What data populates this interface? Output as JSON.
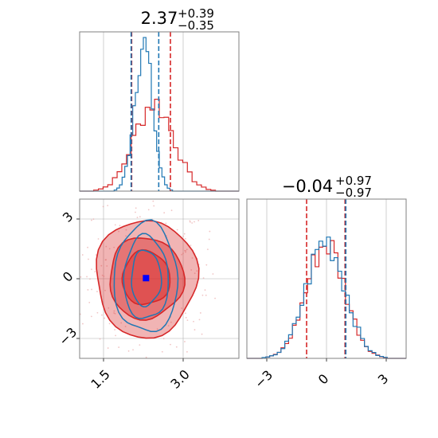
{
  "chart_data": {
    "type": "corner",
    "colors": {
      "red": "#d62728",
      "blue": "#1f77b4",
      "marker": "#0000ff",
      "grid": "#b0b0b0",
      "frame": "#808080",
      "tick": "#404040"
    },
    "titles": [
      {
        "value": "2.37",
        "sup": "+0.39",
        "sub": "−0.35"
      },
      {
        "value": "−0.04",
        "sup": "+0.97",
        "sub": "−0.97"
      }
    ],
    "params": [
      {
        "range": [
          1.05,
          4.05
        ],
        "ticks": [
          1.5,
          3.0
        ],
        "tick_labels": [
          "1.5",
          "3.0"
        ]
      },
      {
        "range": [
          -4.0,
          4.0
        ],
        "ticks": [
          -3,
          0,
          3
        ],
        "tick_labels": [
          "−3",
          "0",
          "3"
        ]
      }
    ],
    "grid": true,
    "hist1_red": {
      "quantiles": [
        2.03,
        2.76
      ],
      "center": 2.45,
      "sigma": 0.37,
      "amp": 0.6
    },
    "hist1_blue": {
      "quantiles": [
        2.02,
        2.54
      ],
      "center": 2.25,
      "sigma": 0.17,
      "amp": 1.0
    },
    "hist2_red": {
      "quantiles": [
        -1.0,
        0.93
      ],
      "center": -0.04,
      "sigma": 0.97,
      "amp": 0.78
    },
    "hist2_blue": {
      "quantiles": [
        0.97
      ],
      "center": -0.04,
      "sigma": 0.97,
      "amp": 0.8
    },
    "joint_center": [
      2.3,
      0.03
    ],
    "red_contours": [
      {
        "rx": 0.45,
        "ry": 1.35,
        "opacity": 0.45
      },
      {
        "rx": 0.7,
        "ry": 2.05,
        "opacity": 0.45
      },
      {
        "rx": 0.95,
        "ry": 2.95,
        "opacity": 0.35
      }
    ],
    "blue_contours": [
      {
        "rx": 0.28,
        "ry": 1.4
      },
      {
        "rx": 0.42,
        "ry": 2.1
      },
      {
        "rx": 0.6,
        "ry": 2.75
      }
    ],
    "marker": [
      2.3,
      0.03
    ]
  }
}
